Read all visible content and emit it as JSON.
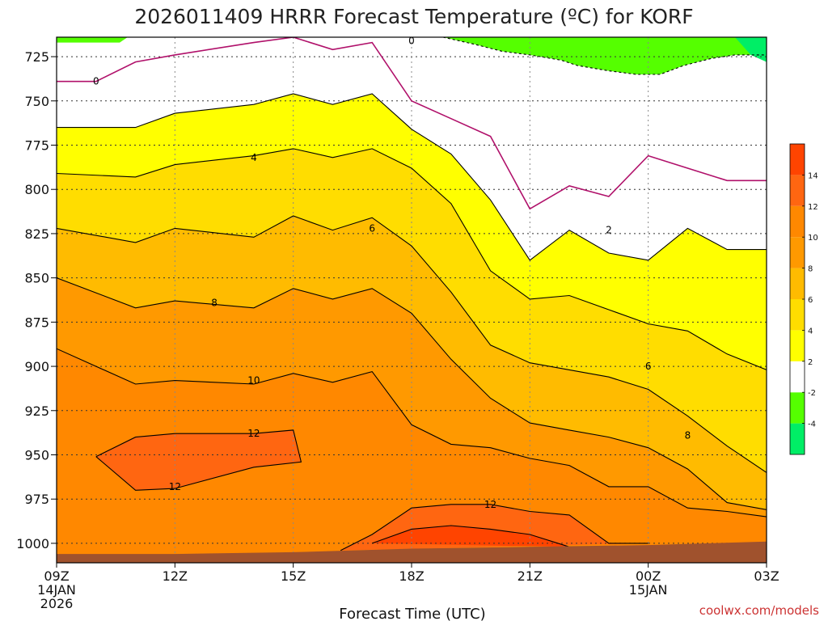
{
  "chart_data": {
    "type": "heatmap",
    "title": "2026011409 HRRR Forecast Temperature (ºC) for KORF",
    "xlabel": "Forecast Time (UTC)",
    "ylabel": "",
    "credit": "coolwx.com/models",
    "x_tick_lines": [
      [
        "09Z",
        "14JAN",
        "2026"
      ],
      [
        "12Z"
      ],
      [
        "15Z"
      ],
      [
        "18Z"
      ],
      [
        "21Z"
      ],
      [
        "00Z",
        "15JAN"
      ],
      [
        "03Z"
      ]
    ],
    "x_tick_hours": [
      0,
      3,
      6,
      9,
      12,
      15,
      18
    ],
    "xlim": [
      0,
      18
    ],
    "y_ticks": [
      725,
      750,
      775,
      800,
      825,
      850,
      875,
      900,
      925,
      950,
      975,
      1000
    ],
    "ylim": [
      1011,
      714
    ],
    "y_unit": "hPa",
    "grid": true,
    "colorbar": {
      "levels": [
        -6,
        -4,
        -2,
        2,
        4,
        6,
        8,
        10,
        12,
        14,
        16
      ],
      "tick_labels": [
        "-4",
        "-2",
        "2",
        "4",
        "6",
        "8",
        "10",
        "12",
        "14"
      ],
      "colors": [
        "#00ee66",
        "#55ff00",
        "#ffffff",
        "#ffff00",
        "#ffdd00",
        "#ffbb00",
        "#ff9900",
        "#ff8800",
        "#ff6611",
        "#ff4400"
      ]
    },
    "series": [
      {
        "name": "-2",
        "values": [
          [
            9.8,
            714
          ],
          [
            10.6,
            718
          ],
          [
            11.3,
            722
          ],
          [
            12.0,
            724
          ],
          [
            12.8,
            727
          ],
          [
            13.2,
            730
          ],
          [
            14.0,
            733
          ],
          [
            14.7,
            735
          ],
          [
            15.3,
            735
          ],
          [
            15.9,
            730
          ],
          [
            16.6,
            726
          ],
          [
            17.2,
            724
          ],
          [
            18.0,
            724
          ]
        ]
      },
      {
        "name": "0",
        "values": [
          [
            0,
            739
          ],
          [
            1,
            739
          ],
          [
            2,
            728
          ],
          [
            3,
            724
          ],
          [
            5,
            717
          ],
          [
            6,
            714
          ],
          [
            7,
            721
          ],
          [
            8,
            717
          ],
          [
            8.0,
            717
          ],
          [
            9.0,
            750
          ],
          [
            10.0,
            760
          ],
          [
            11.0,
            770
          ],
          [
            12.0,
            811
          ],
          [
            13,
            798
          ],
          [
            14.0,
            804
          ],
          [
            15.0,
            781
          ],
          [
            16.0,
            788
          ],
          [
            17.0,
            795
          ],
          [
            18,
            795
          ]
        ]
      },
      {
        "name": "2",
        "values": [
          [
            0,
            765
          ],
          [
            2,
            765
          ],
          [
            3,
            757
          ],
          [
            5,
            752
          ],
          [
            6,
            746
          ],
          [
            7,
            752
          ],
          [
            8,
            746
          ],
          [
            9,
            766
          ],
          [
            10,
            780
          ],
          [
            11,
            806
          ],
          [
            12,
            840
          ],
          [
            13,
            823
          ],
          [
            14,
            836
          ],
          [
            15,
            840
          ],
          [
            16,
            822
          ],
          [
            17,
            834
          ],
          [
            18,
            834
          ]
        ]
      },
      {
        "name": "4",
        "values": [
          [
            0,
            791
          ],
          [
            2,
            793
          ],
          [
            3,
            786
          ],
          [
            5,
            781
          ],
          [
            6,
            777
          ],
          [
            7,
            782
          ],
          [
            8,
            777
          ],
          [
            9,
            788
          ],
          [
            10,
            808
          ],
          [
            11,
            846
          ],
          [
            12,
            862
          ],
          [
            13,
            860
          ],
          [
            14,
            868
          ],
          [
            15,
            876
          ],
          [
            16,
            880
          ],
          [
            17,
            893
          ],
          [
            18,
            902
          ]
        ]
      },
      {
        "name": "6",
        "values": [
          [
            0,
            822
          ],
          [
            2,
            830
          ],
          [
            3,
            822
          ],
          [
            5,
            827
          ],
          [
            6,
            815
          ],
          [
            7,
            823
          ],
          [
            8,
            816
          ],
          [
            9,
            832
          ],
          [
            10,
            858
          ],
          [
            11,
            888
          ],
          [
            12,
            898
          ],
          [
            13,
            902
          ],
          [
            14,
            906
          ],
          [
            15,
            913
          ],
          [
            16,
            928
          ],
          [
            17,
            945
          ],
          [
            18,
            960
          ]
        ]
      },
      {
        "name": "8",
        "values": [
          [
            0,
            850
          ],
          [
            2,
            867
          ],
          [
            3,
            863
          ],
          [
            5,
            867
          ],
          [
            6,
            856
          ],
          [
            7,
            862
          ],
          [
            8,
            856
          ],
          [
            9,
            870
          ],
          [
            10,
            896
          ],
          [
            11,
            918
          ],
          [
            12,
            932
          ],
          [
            13,
            936
          ],
          [
            14,
            940
          ],
          [
            15,
            946
          ],
          [
            16,
            958
          ],
          [
            17,
            977
          ],
          [
            18,
            981
          ]
        ]
      },
      {
        "name": "10",
        "values": [
          [
            0,
            890
          ],
          [
            2,
            910
          ],
          [
            3,
            908
          ],
          [
            5,
            910
          ],
          [
            6,
            904
          ],
          [
            7,
            909
          ],
          [
            8,
            903
          ],
          [
            9,
            933
          ],
          [
            10,
            944
          ],
          [
            11,
            946
          ],
          [
            12,
            952
          ],
          [
            13,
            956
          ],
          [
            14,
            968
          ],
          [
            15,
            968
          ],
          [
            16,
            980
          ],
          [
            17,
            982
          ],
          [
            18,
            985
          ]
        ]
      },
      {
        "name": "12",
        "values": [
          [
            1,
            951
          ],
          [
            2,
            940
          ],
          [
            3,
            938
          ],
          [
            5,
            938
          ],
          [
            6,
            936
          ],
          [
            6.2,
            954
          ],
          [
            5,
            957
          ],
          [
            3,
            969
          ],
          [
            2,
            970
          ],
          [
            1,
            951
          ]
        ]
      },
      {
        "name": "12",
        "values": [
          [
            7.2,
            1004
          ],
          [
            8,
            995
          ],
          [
            9,
            980
          ],
          [
            10,
            978
          ],
          [
            11,
            978
          ],
          [
            12,
            982
          ],
          [
            13,
            984
          ],
          [
            14,
            1000
          ],
          [
            15,
            1000
          ]
        ]
      },
      {
        "name": "14",
        "values": [
          [
            8.0,
            1000
          ],
          [
            9,
            992
          ],
          [
            10,
            990
          ],
          [
            11,
            992
          ],
          [
            12,
            995
          ],
          [
            13,
            1002
          ]
        ]
      }
    ],
    "contour_labels": [
      {
        "text": "0",
        "x": 1.0,
        "y": 739
      },
      {
        "text": "0",
        "x": 9.0,
        "y": 716
      },
      {
        "text": "4",
        "x": 5.0,
        "y": 782
      },
      {
        "text": "6",
        "x": 8.0,
        "y": 822
      },
      {
        "text": "2",
        "x": 14.0,
        "y": 823
      },
      {
        "text": "8",
        "x": 4.0,
        "y": 864
      },
      {
        "text": "6",
        "x": 15.0,
        "y": 900
      },
      {
        "text": "10",
        "x": 5.0,
        "y": 908
      },
      {
        "text": "8",
        "x": 16.0,
        "y": 939
      },
      {
        "text": "12",
        "x": 5.0,
        "y": 938
      },
      {
        "text": "12",
        "x": 3.0,
        "y": 968
      },
      {
        "text": "12",
        "x": 11.0,
        "y": 978
      }
    ],
    "ground_pressure": [
      [
        0,
        1006
      ],
      [
        3,
        1006
      ],
      [
        6,
        1005
      ],
      [
        9,
        1003
      ],
      [
        12,
        1002
      ],
      [
        15,
        1001
      ],
      [
        18,
        999
      ]
    ]
  }
}
